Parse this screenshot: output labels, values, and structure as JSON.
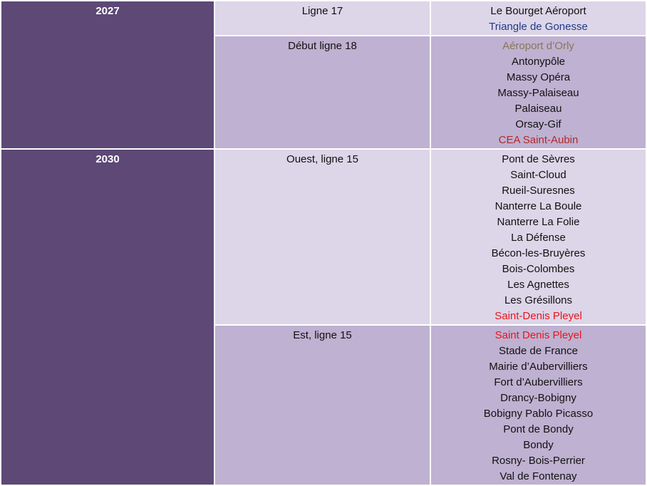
{
  "table": {
    "rows": [
      {
        "year": "2027",
        "sections": [
          {
            "line": "Ligne 17",
            "stations": [
              {
                "name": "Le Bourget Aéroport"
              },
              {
                "name": "Triangle de Gonesse",
                "color": "#1f3c88"
              }
            ]
          },
          {
            "line": "Début ligne 18",
            "stations": [
              {
                "name": "Aéroport d’Orly",
                "color": "#8a7556"
              },
              {
                "name": "Antonypôle"
              },
              {
                "name": "Massy Opéra"
              },
              {
                "name": "Massy-Palaiseau"
              },
              {
                "name": "Palaiseau"
              },
              {
                "name": "Orsay-Gif"
              },
              {
                "name": "CEA Saint-Aubin",
                "color": "#b02a2a"
              }
            ]
          }
        ]
      },
      {
        "year": "2030",
        "sections": [
          {
            "line": "Ouest, ligne 15",
            "stations": [
              {
                "name": "Pont de Sèvres"
              },
              {
                "name": "Saint-Cloud"
              },
              {
                "name": "Rueil-Suresnes"
              },
              {
                "name": "Nanterre La Boule"
              },
              {
                "name": "Nanterre La Folie"
              },
              {
                "name": "La Défense"
              },
              {
                "name": "Bécon-les-Bruyères"
              },
              {
                "name": "Bois-Colombes"
              },
              {
                "name": "Les Agnettes"
              },
              {
                "name": "Les Grésillons"
              },
              {
                "name": "Saint-Denis Pleyel",
                "color": "#e8141e"
              }
            ]
          },
          {
            "line": "Est, ligne 15",
            "stations": [
              {
                "name": "Saint Denis Pleyel",
                "color": "#e8141e"
              },
              {
                "name": "Stade de France"
              },
              {
                "name": "Mairie d’Aubervilliers"
              },
              {
                "name": "Fort d’Aubervilliers"
              },
              {
                "name": "Drancy-Bobigny"
              },
              {
                "name": "Bobigny Pablo Picasso"
              },
              {
                "name": "Pont de Bondy"
              },
              {
                "name": "Bondy"
              },
              {
                "name": "Rosny- Bois-Perrier"
              },
              {
                "name": "Val de Fontenay"
              }
            ]
          }
        ]
      }
    ]
  }
}
